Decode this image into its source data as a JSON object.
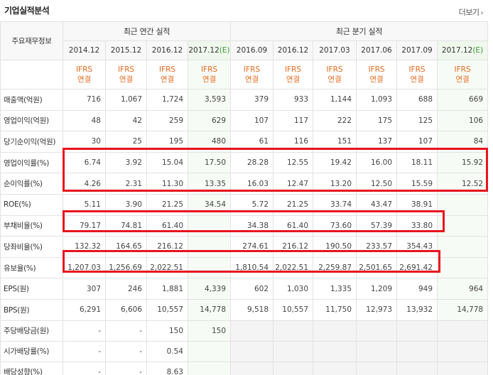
{
  "header": {
    "title": "기업실적분석",
    "more_label": "더보기",
    "more_arrow": "›"
  },
  "table": {
    "side_header": "주요재무정보",
    "annual_group": "최근 연간 실적",
    "quarter_group": "최근 분기 실적",
    "periods": [
      {
        "date": "2014.12",
        "est": false
      },
      {
        "date": "2015.12",
        "est": false
      },
      {
        "date": "2016.12",
        "est": false
      },
      {
        "date": "2017.12",
        "est": true,
        "suffix": "(E)"
      },
      {
        "date": "2016.09",
        "est": false
      },
      {
        "date": "2016.12",
        "est": false
      },
      {
        "date": "2017.03",
        "est": false
      },
      {
        "date": "2017.06",
        "est": false
      },
      {
        "date": "2017.09",
        "est": false
      },
      {
        "date": "2017.12",
        "est": true,
        "suffix": "(E)"
      }
    ],
    "standard_line1": "IFRS",
    "standard_line2": "연결",
    "rows": [
      {
        "label": "매출액(억원)",
        "values": [
          "716",
          "1,067",
          "1,724",
          "3,593",
          "379",
          "933",
          "1,144",
          "1,093",
          "688",
          "669"
        ]
      },
      {
        "label": "영업이익(억원)",
        "values": [
          "48",
          "42",
          "259",
          "629",
          "107",
          "117",
          "222",
          "175",
          "125",
          "106"
        ]
      },
      {
        "label": "당기순이익(억원)",
        "values": [
          "30",
          "25",
          "195",
          "480",
          "61",
          "116",
          "151",
          "137",
          "107",
          "84"
        ]
      },
      {
        "label": "영업이익률(%)",
        "values": [
          "6.74",
          "3.92",
          "15.04",
          "17.50",
          "28.28",
          "12.55",
          "19.42",
          "16.00",
          "18.11",
          "15.92"
        ]
      },
      {
        "label": "순이익률(%)",
        "values": [
          "4.26",
          "2.31",
          "11.30",
          "13.35",
          "16.03",
          "12.47",
          "13.20",
          "12.50",
          "15.59",
          "12.52"
        ]
      },
      {
        "label": "ROE(%)",
        "values": [
          "5.11",
          "3.90",
          "21.25",
          "34.54",
          "5.72",
          "21.25",
          "33.74",
          "43.47",
          "38.91",
          ""
        ]
      },
      {
        "label": "부채비율(%)",
        "values": [
          "79.17",
          "74.81",
          "61.40",
          "",
          "34.38",
          "61.40",
          "73.60",
          "57.39",
          "33.80",
          ""
        ]
      },
      {
        "label": "당좌비율(%)",
        "values": [
          "132.32",
          "164.65",
          "216.12",
          "",
          "274.61",
          "216.12",
          "190.50",
          "233.57",
          "354.43",
          ""
        ]
      },
      {
        "label": "유보율(%)",
        "values": [
          "1,207.03",
          "1,256.69",
          "2,022.51",
          "",
          "1,810.54",
          "2,022.51",
          "2,259.87",
          "2,501.65",
          "2,691.42",
          ""
        ]
      },
      {
        "label": "EPS(원)",
        "values": [
          "307",
          "246",
          "1,881",
          "4,339",
          "602",
          "1,030",
          "1,335",
          "1,209",
          "949",
          "964"
        ]
      },
      {
        "label": "BPS(원)",
        "values": [
          "6,291",
          "6,606",
          "10,557",
          "14,778",
          "9,518",
          "10,557",
          "11,750",
          "12,973",
          "13,932",
          "14,778"
        ]
      },
      {
        "label": "주당배당금(원)",
        "values": [
          "-",
          "-",
          "150",
          "150",
          null,
          null,
          null,
          null,
          null,
          null
        ]
      },
      {
        "label": "시가배당률(%)",
        "values": [
          "-",
          "-",
          "0.54",
          "",
          null,
          null,
          null,
          null,
          null,
          null
        ]
      },
      {
        "label": "배당성향(%)",
        "values": [
          "-",
          "-",
          "8.63",
          "",
          null,
          null,
          null,
          null,
          null,
          null
        ]
      }
    ]
  },
  "colors": {
    "highlight": "#e8131e",
    "ifrs": "#e66a1d",
    "estimate_bg": "#f7fbf5",
    "estimate_paren": "#3a9a3a"
  }
}
